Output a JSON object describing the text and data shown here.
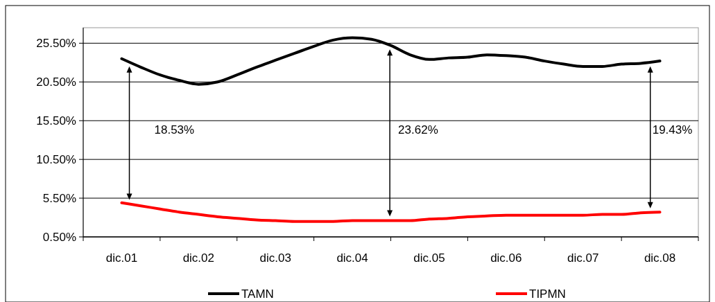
{
  "chart_data": {
    "type": "line",
    "categories": [
      "dic.01",
      null,
      null,
      null,
      "dic.02",
      null,
      null,
      null,
      "dic.03",
      null,
      null,
      null,
      "dic.04",
      null,
      null,
      null,
      "dic.05",
      null,
      null,
      null,
      "dic.06",
      null,
      null,
      null,
      "dic.07",
      null,
      null,
      null,
      "dic.08"
    ],
    "series": [
      {
        "name": "TAMN",
        "color": "#000000",
        "values": [
          23.5,
          22.4,
          21.4,
          20.7,
          20.2,
          20.5,
          21.4,
          22.4,
          23.3,
          24.2,
          25.1,
          25.9,
          26.2,
          26.0,
          25.2,
          24.0,
          23.4,
          23.6,
          23.7,
          24.0,
          23.9,
          23.7,
          23.2,
          22.8,
          22.5,
          22.5,
          22.8,
          22.9,
          23.2
        ]
      },
      {
        "name": "TIPMN",
        "color": "#ff0000",
        "values": [
          4.9,
          4.5,
          4.1,
          3.7,
          3.4,
          3.1,
          2.9,
          2.7,
          2.6,
          2.5,
          2.5,
          2.5,
          2.6,
          2.6,
          2.6,
          2.6,
          2.8,
          2.9,
          3.1,
          3.2,
          3.3,
          3.3,
          3.3,
          3.3,
          3.3,
          3.4,
          3.4,
          3.6,
          3.7
        ]
      }
    ],
    "ylim": [
      0.5,
      27.5
    ],
    "yticks": [
      {
        "value": 0.5,
        "label": "0.50%"
      },
      {
        "value": 5.5,
        "label": "5.50%"
      },
      {
        "value": 10.5,
        "label": "10.50%"
      },
      {
        "value": 15.5,
        "label": "15.50%"
      },
      {
        "value": 20.5,
        "label": "20.50%"
      },
      {
        "value": 25.5,
        "label": "25.50%"
      }
    ],
    "grid": "y",
    "legend": "bottom",
    "marker": "none",
    "line_style": "solid",
    "annotations": [
      "18.53%",
      "23.62%",
      "19.43%"
    ]
  }
}
